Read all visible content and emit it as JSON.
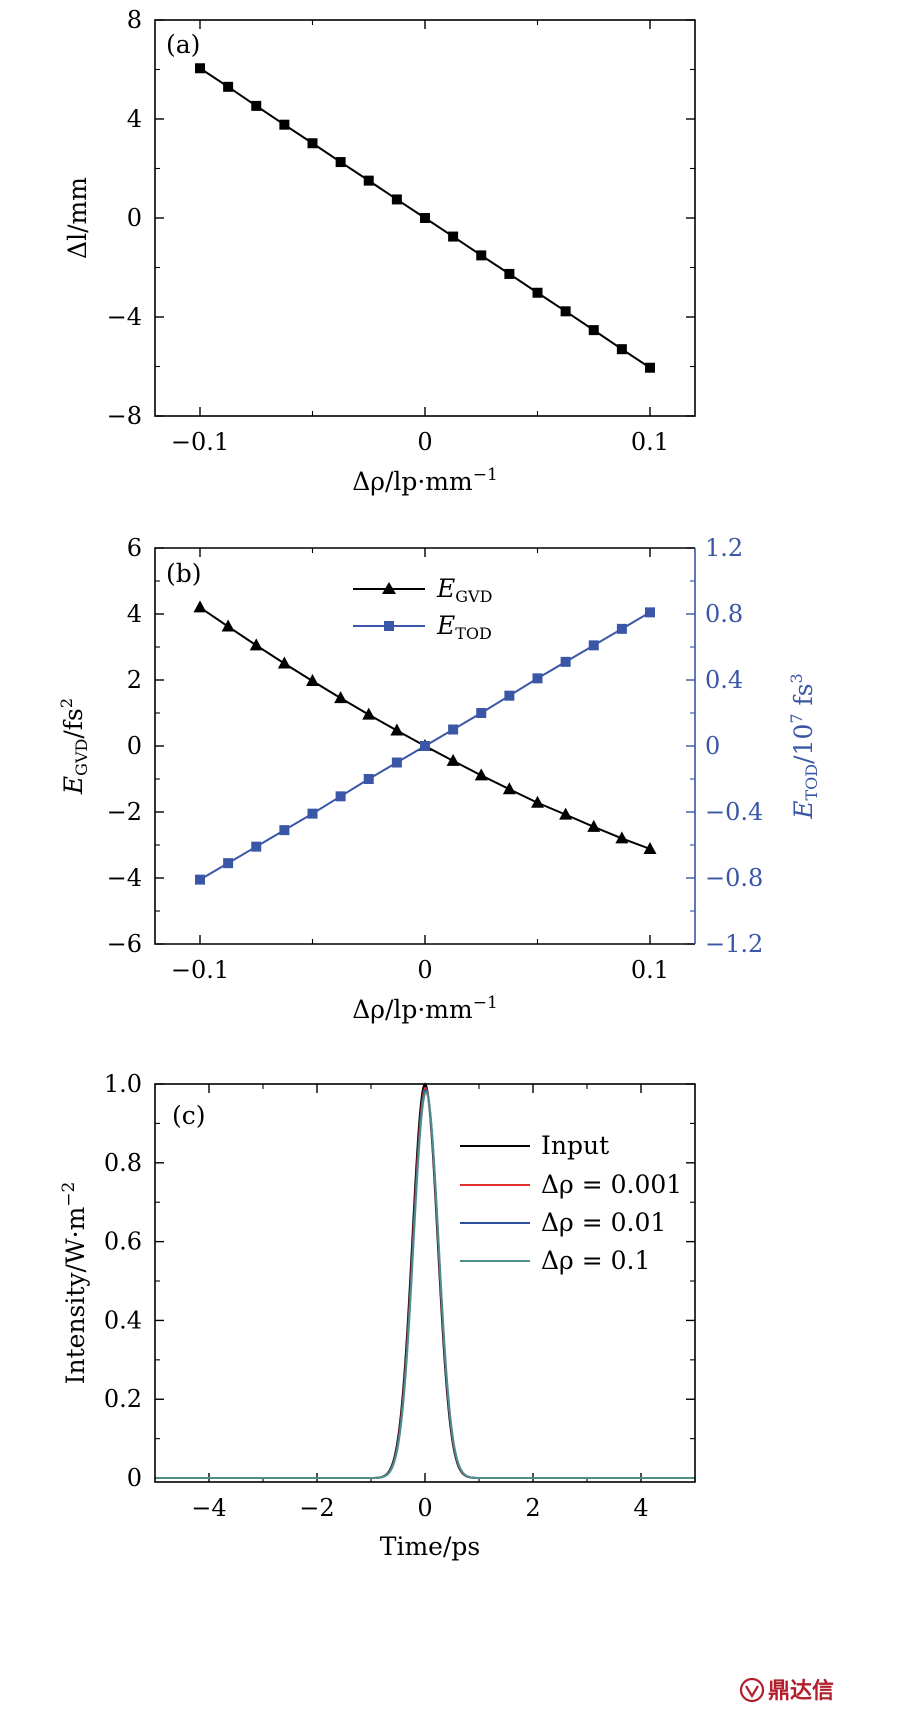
{
  "chart_data": [
    {
      "id": "a",
      "type": "line",
      "panel_label": "(a)",
      "xlabel": "Δρ/lp·mm",
      "xlabel_sup": "−1",
      "ylabel": "Δl/mm",
      "xlim": [
        -0.12,
        0.12
      ],
      "ylim": [
        -8,
        8
      ],
      "x_ticks": [
        -0.1,
        0,
        0.1
      ],
      "x_tick_labels": [
        "−0.1",
        "0",
        "0.1"
      ],
      "y_ticks": [
        8,
        4,
        0,
        -4,
        -8
      ],
      "y_tick_labels": [
        "8",
        "4",
        "0",
        "−4",
        "−8"
      ],
      "series": [
        {
          "color": "#000000",
          "marker": "square",
          "x": [
            -0.1,
            -0.0875,
            -0.075,
            -0.0625,
            -0.05,
            -0.0375,
            -0.025,
            -0.0125,
            0,
            0.0125,
            0.025,
            0.0375,
            0.05,
            0.0625,
            0.075,
            0.0875,
            0.1
          ],
          "y": [
            6.05,
            5.3,
            4.53,
            3.77,
            3.02,
            2.26,
            1.51,
            0.75,
            0,
            -0.75,
            -1.51,
            -2.26,
            -3.02,
            -3.77,
            -4.53,
            -5.3,
            -6.05
          ]
        }
      ]
    },
    {
      "id": "b",
      "type": "line",
      "panel_label": "(b)",
      "xlabel": "Δρ/lp·mm",
      "xlabel_sup": "−1",
      "ylabel_main": "E",
      "ylabel_sub": "GVD",
      "ylabel_rest": "/fs",
      "ylabel_sup": "2",
      "y2label_main": "E",
      "y2label_sub": "TOD",
      "y2label_rest": "/10",
      "y2label_sup": "7",
      "y2label_unit": " fs",
      "y2label_unit_sup": "3",
      "xlim": [
        -0.12,
        0.12
      ],
      "ylim": [
        -6,
        6
      ],
      "y2lim": [
        -1.2,
        1.2
      ],
      "x_ticks": [
        -0.1,
        0,
        0.1
      ],
      "x_tick_labels": [
        "−0.1",
        "0",
        "0.1"
      ],
      "y_ticks": [
        6,
        4,
        2,
        0,
        -2,
        -4,
        -6
      ],
      "y_tick_labels": [
        "6",
        "4",
        "2",
        "0",
        "−2",
        "−4",
        "−6"
      ],
      "y2_ticks": [
        1.2,
        0.8,
        0.4,
        0,
        -0.4,
        -0.8,
        -1.2
      ],
      "y2_tick_labels": [
        "1.2",
        "0.8",
        "0.4",
        "0",
        "−0.4",
        "−0.8",
        "−1.2"
      ],
      "legend_position": "top-center",
      "series": [
        {
          "name_main": "E",
          "name_sub": "GVD",
          "color": "#000000",
          "marker": "triangle",
          "axis": "left",
          "x": [
            -0.1,
            -0.0875,
            -0.075,
            -0.0625,
            -0.05,
            -0.0375,
            -0.025,
            -0.0125,
            0,
            0.0125,
            0.025,
            0.0375,
            0.05,
            0.0625,
            0.075,
            0.0875,
            0.1
          ],
          "y": [
            4.2,
            3.62,
            3.05,
            2.5,
            1.97,
            1.45,
            0.95,
            0.47,
            0,
            -0.45,
            -0.89,
            -1.31,
            -1.72,
            -2.08,
            -2.45,
            -2.8,
            -3.12
          ]
        },
        {
          "name_main": "E",
          "name_sub": "TOD",
          "color": "#3a56a6",
          "marker": "square",
          "axis": "right",
          "x": [
            -0.1,
            -0.0875,
            -0.075,
            -0.0625,
            -0.05,
            -0.0375,
            -0.025,
            -0.0125,
            0,
            0.0125,
            0.025,
            0.0375,
            0.05,
            0.0625,
            0.075,
            0.0875,
            0.1
          ],
          "y": [
            -0.81,
            -0.71,
            -0.61,
            -0.51,
            -0.41,
            -0.305,
            -0.2,
            -0.1,
            0,
            0.1,
            0.2,
            0.305,
            0.41,
            0.51,
            0.61,
            0.71,
            0.81
          ]
        }
      ]
    },
    {
      "id": "c",
      "type": "line",
      "panel_label": "(c)",
      "xlabel": "Time/ps",
      "ylabel": "Intensity/W·m",
      "ylabel_sup": "−2",
      "xlim": [
        -5,
        5
      ],
      "ylim": [
        -0.01,
        1.0
      ],
      "x_ticks": [
        -4,
        -2,
        0,
        2,
        4
      ],
      "x_tick_labels": [
        "−4",
        "−2",
        "0",
        "2",
        "4"
      ],
      "y_ticks": [
        1.0,
        0.8,
        0.6,
        0.4,
        0.2,
        0
      ],
      "y_tick_labels": [
        "1.0",
        "0.8",
        "0.6",
        "0.4",
        "0.2",
        "0"
      ],
      "legend_position": "right",
      "pulse_fwhm_ps": 0.55,
      "series": [
        {
          "name": "Input",
          "color": "#000000",
          "peak": 1.0,
          "center": 0
        },
        {
          "name": "Δρ = 0.001",
          "color": "#e03030",
          "peak": 0.99,
          "center": 0.01
        },
        {
          "name": "Δρ = 0.01",
          "color": "#2f4f9a",
          "peak": 0.985,
          "center": 0.015
        },
        {
          "name": "Δρ = 0.1",
          "color": "#4e8f8c",
          "peak": 0.98,
          "center": 0.02
        }
      ]
    }
  ],
  "watermark": {
    "text": "鼎达信"
  }
}
